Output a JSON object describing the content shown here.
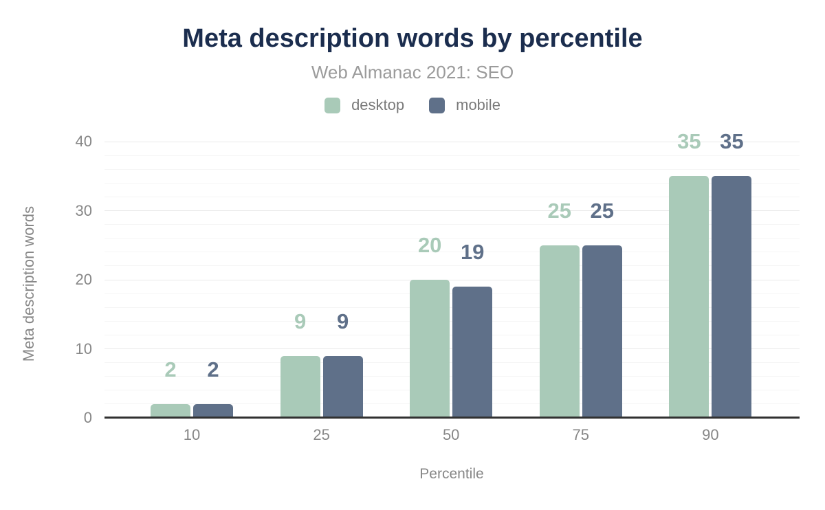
{
  "chart_data": {
    "type": "bar",
    "title": "Meta description words by percentile",
    "subtitle": "Web Almanac 2021: SEO",
    "categories": [
      "10",
      "25",
      "50",
      "75",
      "90"
    ],
    "series": [
      {
        "name": "desktop",
        "color": "#a9cab8",
        "values": [
          2,
          9,
          20,
          25,
          35
        ]
      },
      {
        "name": "mobile",
        "color": "#5f7089",
        "values": [
          2,
          9,
          19,
          25,
          35
        ]
      }
    ],
    "xlabel": "Percentile",
    "ylabel": "Meta description words",
    "ylim": [
      0,
      40
    ],
    "yticks": [
      0,
      10,
      20,
      30,
      40
    ],
    "minor_gridline_step": 2,
    "grid": true,
    "legend_position": "top",
    "data_labels": true
  },
  "colors": {
    "title": "#1b2d4e",
    "subtitle": "#9b9b9b",
    "axis_text": "#878787",
    "legend_text": "#7a7a7a",
    "axis_line": "#313131",
    "grid_major": "#e8e8e8",
    "grid_minor": "#f5f5f5",
    "background": "#ffffff"
  }
}
